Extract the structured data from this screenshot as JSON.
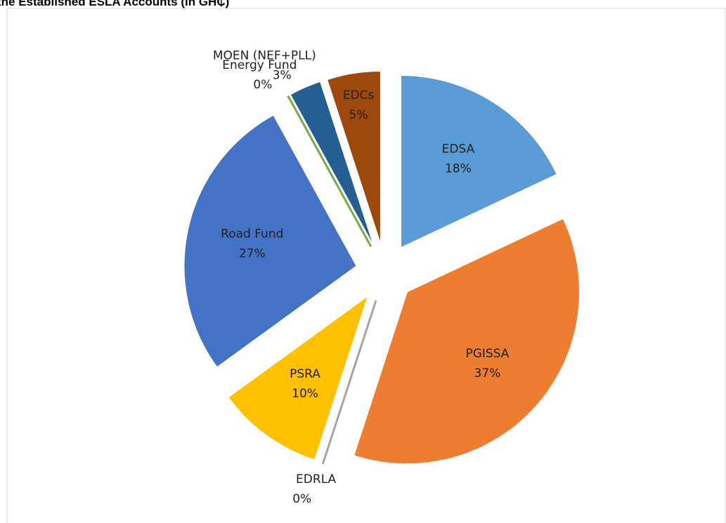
{
  "chart_data": {
    "type": "pie",
    "title": "the Established ESLA Accounts (in GH₵)",
    "categories": [
      "EDSA",
      "PGISSA",
      "EDRLA",
      "PSRA",
      "Road Fund",
      "Energy Fund",
      "MOEN (NEF+PLL)",
      "EDCs"
    ],
    "values": [
      18,
      37,
      0,
      10,
      27,
      0,
      3,
      5
    ],
    "value_labels": [
      "18%",
      "37%",
      "0%",
      "10%",
      "27%",
      "0%",
      "3%",
      "5%"
    ],
    "colors": [
      "#5b9bd5",
      "#ed7d31",
      "#a5a5a5",
      "#ffc000",
      "#4472c4",
      "#70ad47",
      "#255e91",
      "#9e480e"
    ]
  }
}
